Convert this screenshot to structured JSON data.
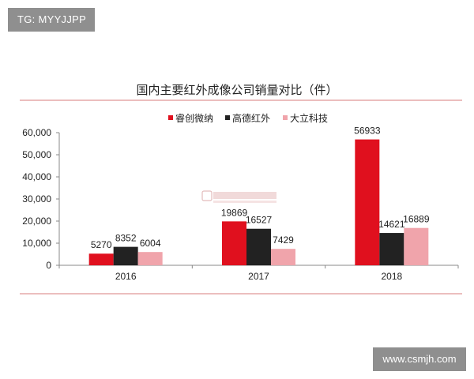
{
  "watermarks": {
    "top_left": "TG: MYYJJPP",
    "bottom_right": "www.csmjh.com"
  },
  "colors": {
    "accent_line": "#e6a9a9",
    "axis": "#888888"
  },
  "chart_data": {
    "type": "bar",
    "title": "国内主要红外成像公司销量对比（件）",
    "categories": [
      "2016",
      "2017",
      "2018"
    ],
    "series": [
      {
        "name": "睿创微纳",
        "color": "#e0101e",
        "values": [
          5270,
          19869,
          56933
        ]
      },
      {
        "name": "高德红外",
        "color": "#222222",
        "values": [
          8352,
          16527,
          14621
        ]
      },
      {
        "name": "大立科技",
        "color": "#f0a4ab",
        "values": [
          6004,
          7429,
          16889
        ]
      }
    ],
    "ylim": [
      0,
      60000
    ],
    "yticks": [
      0,
      10000,
      20000,
      30000,
      40000,
      50000,
      60000
    ],
    "ytick_labels": [
      "0",
      "10,000",
      "20,000",
      "30,000",
      "40,000",
      "50,000",
      "60,000"
    ],
    "grid": false,
    "legend_position": "top",
    "xlabel": "",
    "ylabel": ""
  }
}
